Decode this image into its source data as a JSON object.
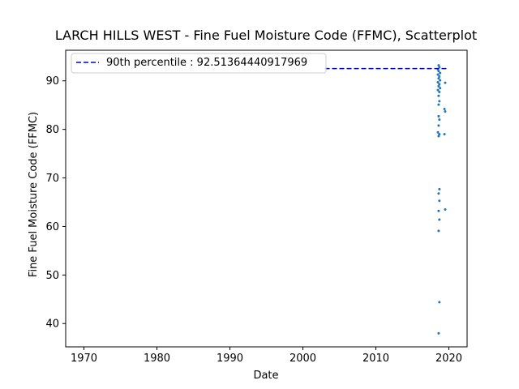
{
  "chart_data": {
    "type": "scatter",
    "title": "LARCH HILLS WEST - Fine Fuel Moisture Code (FFMC), Scatterplot",
    "xlabel": "Date",
    "ylabel": "Fine Fuel Moisture Code (FFMC)",
    "xlim": [
      1967.5,
      2022.5
    ],
    "ylim": [
      35.2,
      96.3
    ],
    "xticks": [
      1970,
      1980,
      1990,
      2000,
      2010,
      2020
    ],
    "yticks": [
      40,
      50,
      60,
      70,
      80,
      90
    ],
    "grid": false,
    "legend_position": "top-left",
    "series": [
      {
        "name": "",
        "color": "#1f77b4",
        "marker": "dot",
        "points": [
          {
            "x": 2018.6,
            "y": 93.2
          },
          {
            "x": 2018.7,
            "y": 92.8
          },
          {
            "x": 2018.5,
            "y": 92.4
          },
          {
            "x": 2018.6,
            "y": 92.0
          },
          {
            "x": 2018.8,
            "y": 91.6
          },
          {
            "x": 2018.5,
            "y": 91.3
          },
          {
            "x": 2018.7,
            "y": 90.9
          },
          {
            "x": 2018.6,
            "y": 90.5
          },
          {
            "x": 2018.8,
            "y": 90.1
          },
          {
            "x": 2018.5,
            "y": 89.7
          },
          {
            "x": 2018.7,
            "y": 89.3
          },
          {
            "x": 2018.6,
            "y": 88.9
          },
          {
            "x": 2018.8,
            "y": 88.5
          },
          {
            "x": 2018.5,
            "y": 88.1
          },
          {
            "x": 2018.7,
            "y": 87.7
          },
          {
            "x": 2019.5,
            "y": 89.6
          },
          {
            "x": 2018.6,
            "y": 86.9
          },
          {
            "x": 2018.7,
            "y": 85.8
          },
          {
            "x": 2018.6,
            "y": 85.1
          },
          {
            "x": 2019.4,
            "y": 84.2
          },
          {
            "x": 2019.5,
            "y": 83.7
          },
          {
            "x": 2018.6,
            "y": 82.7
          },
          {
            "x": 2018.7,
            "y": 82.0
          },
          {
            "x": 2018.6,
            "y": 80.8
          },
          {
            "x": 2018.5,
            "y": 79.4
          },
          {
            "x": 2018.7,
            "y": 79.0
          },
          {
            "x": 2019.4,
            "y": 79.0
          },
          {
            "x": 2018.6,
            "y": 78.6
          },
          {
            "x": 2018.7,
            "y": 67.7
          },
          {
            "x": 2018.6,
            "y": 66.8
          },
          {
            "x": 2018.7,
            "y": 65.3
          },
          {
            "x": 2019.5,
            "y": 63.5
          },
          {
            "x": 2018.6,
            "y": 63.2
          },
          {
            "x": 2018.7,
            "y": 61.4
          },
          {
            "x": 2018.6,
            "y": 59.1
          },
          {
            "x": 2018.7,
            "y": 44.4
          },
          {
            "x": 2018.6,
            "y": 38.0
          }
        ]
      },
      {
        "name": "90th percentile : 92.51364440917969",
        "type": "hline",
        "color": "#0000cd",
        "dash": "dashed",
        "y": 92.51364440917969,
        "x_range": [
          2003.0,
          2019.9
        ]
      }
    ]
  }
}
